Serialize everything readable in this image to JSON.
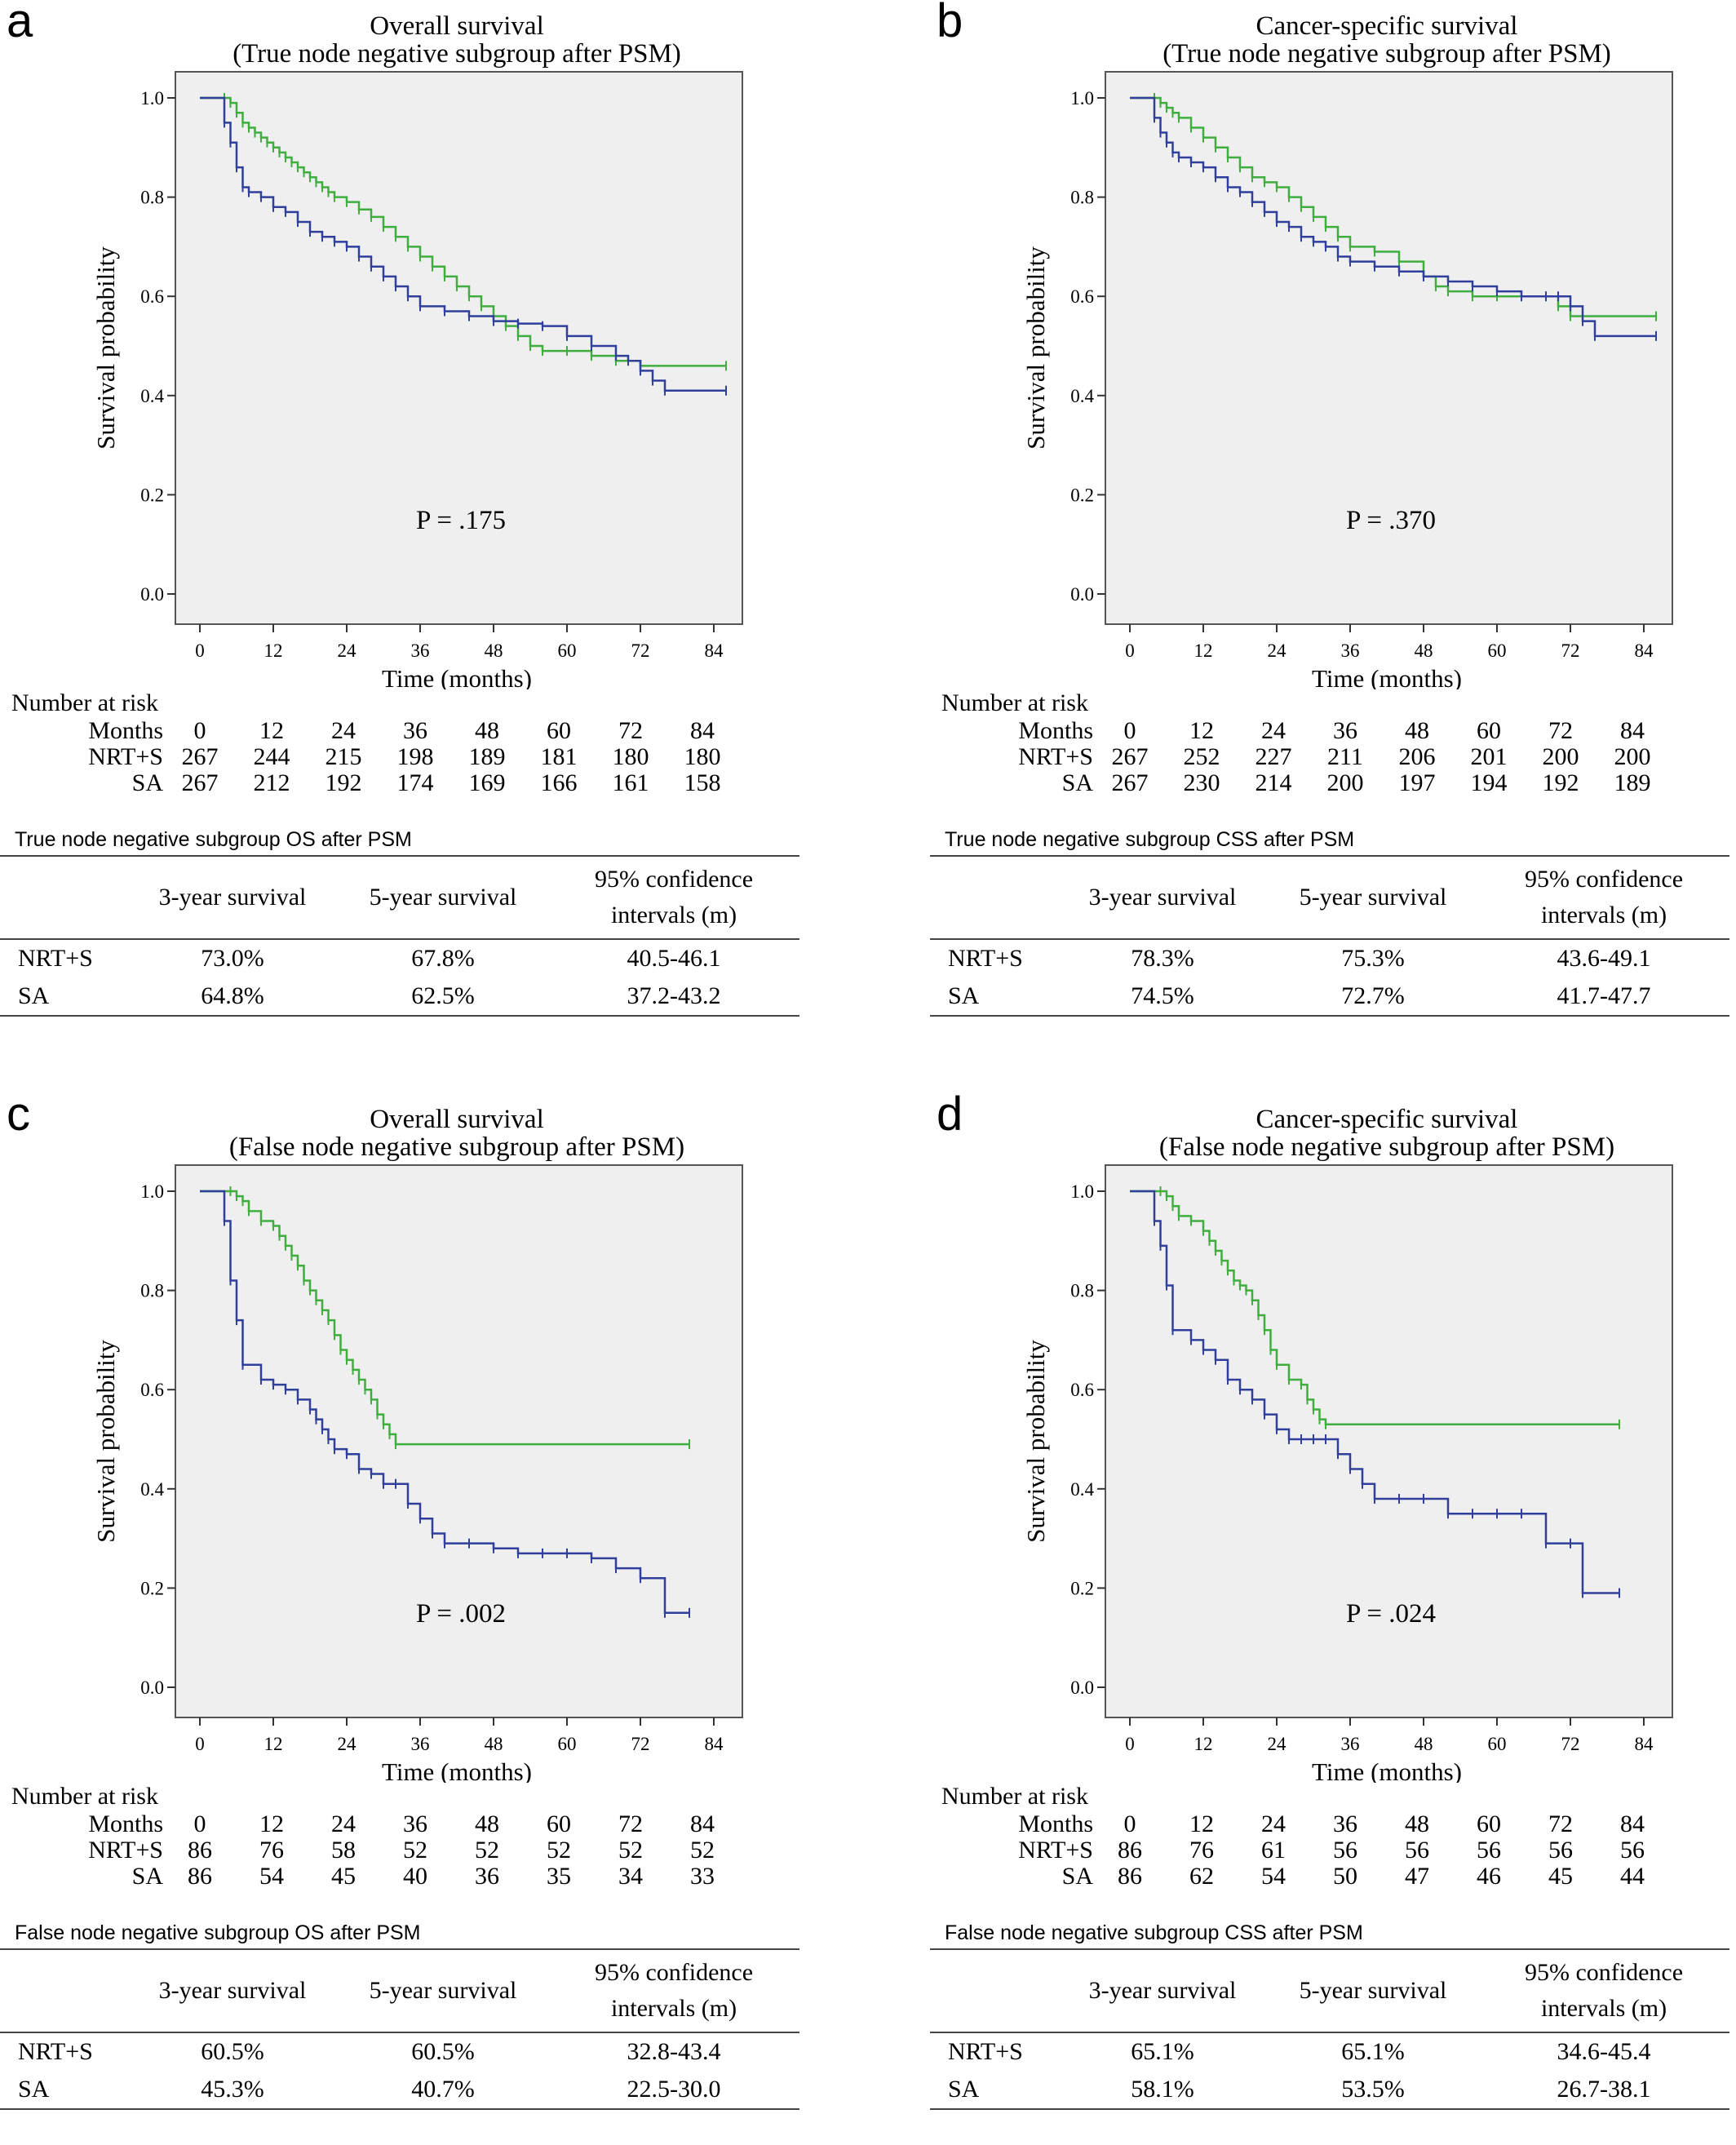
{
  "colors": {
    "nrt": "#3fae3f",
    "sa": "#2f3f9b",
    "plot_bg": "#efefef"
  },
  "chart_data": [
    {
      "type": "line",
      "letter": "a",
      "title": "Overall survival",
      "subtitle": "(True node negative subgroup after PSM)",
      "xlabel": "Time (months)",
      "ylabel": "Survival probability",
      "xlim": [
        0,
        84
      ],
      "ylim": [
        0.0,
        1.0
      ],
      "xticks": [
        "0",
        "12",
        "24",
        "36",
        "48",
        "60",
        "72",
        "84"
      ],
      "yticks": [
        "0.0",
        "0.2",
        "0.4",
        "0.6",
        "0.8",
        "1.0"
      ],
      "grid": false,
      "pvalue": "P = .175",
      "series": [
        {
          "key": "nrt",
          "x": [
            0,
            4,
            5,
            6,
            7,
            8,
            9,
            10,
            11,
            12,
            13,
            14,
            15,
            16,
            17,
            18,
            19,
            20,
            21,
            22,
            24,
            26,
            28,
            30,
            32,
            34,
            36,
            38,
            40,
            42,
            44,
            46,
            48,
            50,
            52,
            54,
            56,
            60,
            64,
            68,
            72,
            86
          ],
          "y": [
            1,
            1,
            0.99,
            0.97,
            0.95,
            0.94,
            0.93,
            0.92,
            0.91,
            0.9,
            0.89,
            0.88,
            0.87,
            0.86,
            0.85,
            0.84,
            0.83,
            0.82,
            0.81,
            0.8,
            0.79,
            0.775,
            0.76,
            0.74,
            0.72,
            0.7,
            0.68,
            0.66,
            0.64,
            0.62,
            0.6,
            0.58,
            0.56,
            0.54,
            0.52,
            0.5,
            0.49,
            0.49,
            0.48,
            0.47,
            0.46,
            0.46
          ]
        },
        {
          "key": "sa",
          "x": [
            0,
            4,
            5,
            6,
            7,
            8,
            10,
            12,
            14,
            16,
            18,
            20,
            22,
            24,
            26,
            28,
            30,
            32,
            34,
            36,
            40,
            44,
            48,
            52,
            56,
            60,
            64,
            68,
            70,
            72,
            74,
            76,
            86
          ],
          "y": [
            1,
            0.95,
            0.91,
            0.86,
            0.82,
            0.81,
            0.8,
            0.78,
            0.77,
            0.75,
            0.73,
            0.72,
            0.71,
            0.7,
            0.68,
            0.66,
            0.64,
            0.62,
            0.6,
            0.58,
            0.57,
            0.56,
            0.55,
            0.545,
            0.54,
            0.52,
            0.5,
            0.48,
            0.47,
            0.45,
            0.43,
            0.41,
            0.41
          ]
        }
      ],
      "risk": {
        "title": "Number at risk",
        "rows": [
          {
            "label": "Months",
            "values": [
              "0",
              "12",
              "24",
              "36",
              "48",
              "60",
              "72",
              "84"
            ]
          },
          {
            "label": "NRT+S",
            "values": [
              "267",
              "244",
              "215",
              "198",
              "189",
              "181",
              "180",
              "180"
            ]
          },
          {
            "label": "SA",
            "values": [
              "267",
              "212",
              "192",
              "174",
              "169",
              "166",
              "161",
              "158"
            ]
          }
        ]
      },
      "table": {
        "title": "True node negative subgroup OS after PSM",
        "headers": [
          "",
          "3-year survival",
          "5-year survival",
          "95% confidence intervals (m)"
        ],
        "rows": [
          [
            "NRT+S",
            "73.0%",
            "67.8%",
            "40.5-46.1"
          ],
          [
            "SA",
            "64.8%",
            "62.5%",
            "37.2-43.2"
          ]
        ]
      }
    },
    {
      "type": "line",
      "letter": "b",
      "title": "Cancer-specific survival",
      "subtitle": "(True node negative subgroup after PSM)",
      "xlabel": "Time (months)",
      "ylabel": "Survival probability",
      "xlim": [
        0,
        84
      ],
      "ylim": [
        0.0,
        1.0
      ],
      "xticks": [
        "0",
        "12",
        "24",
        "36",
        "48",
        "60",
        "72",
        "84"
      ],
      "yticks": [
        "0.0",
        "0.2",
        "0.4",
        "0.6",
        "0.8",
        "1.0"
      ],
      "grid": false,
      "pvalue": "P = .370",
      "series": [
        {
          "key": "nrt",
          "x": [
            0,
            4,
            5,
            6,
            7,
            8,
            10,
            12,
            14,
            16,
            18,
            20,
            22,
            24,
            26,
            28,
            30,
            32,
            34,
            36,
            40,
            44,
            48,
            50,
            52,
            56,
            60,
            64,
            68,
            70,
            72,
            86
          ],
          "y": [
            1,
            1,
            0.99,
            0.98,
            0.97,
            0.96,
            0.94,
            0.92,
            0.9,
            0.88,
            0.86,
            0.84,
            0.83,
            0.82,
            0.8,
            0.78,
            0.76,
            0.74,
            0.72,
            0.7,
            0.69,
            0.67,
            0.64,
            0.62,
            0.61,
            0.6,
            0.6,
            0.6,
            0.6,
            0.58,
            0.56,
            0.56
          ]
        },
        {
          "key": "sa",
          "x": [
            0,
            4,
            5,
            6,
            7,
            8,
            10,
            12,
            14,
            16,
            18,
            20,
            22,
            24,
            26,
            28,
            30,
            32,
            34,
            36,
            40,
            44,
            48,
            52,
            56,
            60,
            64,
            68,
            70,
            72,
            74,
            76,
            86
          ],
          "y": [
            1,
            0.96,
            0.93,
            0.91,
            0.89,
            0.88,
            0.87,
            0.86,
            0.84,
            0.82,
            0.81,
            0.79,
            0.77,
            0.75,
            0.74,
            0.72,
            0.71,
            0.7,
            0.68,
            0.67,
            0.66,
            0.65,
            0.64,
            0.63,
            0.62,
            0.61,
            0.6,
            0.6,
            0.6,
            0.58,
            0.55,
            0.52,
            0.52
          ]
        }
      ],
      "risk": {
        "title": "Number at risk",
        "rows": [
          {
            "label": "Months",
            "values": [
              "0",
              "12",
              "24",
              "36",
              "48",
              "60",
              "72",
              "84"
            ]
          },
          {
            "label": "NRT+S",
            "values": [
              "267",
              "252",
              "227",
              "211",
              "206",
              "201",
              "200",
              "200"
            ]
          },
          {
            "label": "SA",
            "values": [
              "267",
              "230",
              "214",
              "200",
              "197",
              "194",
              "192",
              "189"
            ]
          }
        ]
      },
      "table": {
        "title": "True node negative subgroup CSS after PSM",
        "headers": [
          "",
          "3-year survival",
          "5-year survival",
          "95% confidence intervals (m)"
        ],
        "rows": [
          [
            "NRT+S",
            "78.3%",
            "75.3%",
            "43.6-49.1"
          ],
          [
            "SA",
            "74.5%",
            "72.7%",
            "41.7-47.7"
          ]
        ]
      }
    },
    {
      "type": "line",
      "letter": "c",
      "title": "Overall survival",
      "subtitle": "(False node negative subgroup after PSM)",
      "xlabel": "Time (months)",
      "ylabel": "Survival probability",
      "xlim": [
        0,
        84
      ],
      "ylim": [
        0.0,
        1.0
      ],
      "xticks": [
        "0",
        "12",
        "24",
        "36",
        "48",
        "60",
        "72",
        "84"
      ],
      "yticks": [
        "0.0",
        "0.2",
        "0.4",
        "0.6",
        "0.8",
        "1.0"
      ],
      "grid": false,
      "pvalue": "P = .002",
      "series": [
        {
          "key": "nrt",
          "x": [
            0,
            5,
            6,
            7,
            8,
            10,
            12,
            13,
            14,
            15,
            16,
            17,
            18,
            19,
            20,
            21,
            22,
            23,
            24,
            25,
            26,
            27,
            28,
            29,
            30,
            31,
            32,
            80
          ],
          "y": [
            1,
            1,
            0.99,
            0.98,
            0.96,
            0.94,
            0.93,
            0.91,
            0.89,
            0.87,
            0.85,
            0.82,
            0.8,
            0.78,
            0.76,
            0.74,
            0.71,
            0.68,
            0.66,
            0.64,
            0.62,
            0.6,
            0.58,
            0.55,
            0.53,
            0.51,
            0.49,
            0.49
          ]
        },
        {
          "key": "sa",
          "x": [
            0,
            4,
            5,
            6,
            7,
            10,
            12,
            14,
            16,
            18,
            19,
            20,
            21,
            22,
            24,
            26,
            28,
            30,
            32,
            34,
            36,
            38,
            40,
            44,
            48,
            52,
            56,
            60,
            64,
            68,
            72,
            76,
            80
          ],
          "y": [
            1,
            0.94,
            0.82,
            0.74,
            0.65,
            0.62,
            0.61,
            0.6,
            0.58,
            0.56,
            0.54,
            0.52,
            0.5,
            0.48,
            0.47,
            0.44,
            0.43,
            0.41,
            0.41,
            0.37,
            0.34,
            0.31,
            0.29,
            0.29,
            0.28,
            0.27,
            0.27,
            0.27,
            0.26,
            0.24,
            0.22,
            0.15,
            0.15
          ]
        }
      ],
      "risk": {
        "title": "Number at risk",
        "rows": [
          {
            "label": "Months",
            "values": [
              "0",
              "12",
              "24",
              "36",
              "48",
              "60",
              "72",
              "84"
            ]
          },
          {
            "label": "NRT+S",
            "values": [
              "86",
              "76",
              "58",
              "52",
              "52",
              "52",
              "52",
              "52"
            ]
          },
          {
            "label": "SA",
            "values": [
              "86",
              "54",
              "45",
              "40",
              "36",
              "35",
              "34",
              "33"
            ]
          }
        ]
      },
      "table": {
        "title": "False node negative subgroup OS after PSM",
        "headers": [
          "",
          "3-year survival",
          "5-year survival",
          "95% confidence intervals (m)"
        ],
        "rows": [
          [
            "NRT+S",
            "60.5%",
            "60.5%",
            "32.8-43.4"
          ],
          [
            "SA",
            "45.3%",
            "40.7%",
            "22.5-30.0"
          ]
        ]
      }
    },
    {
      "type": "line",
      "letter": "d",
      "title": "Cancer-specific survival",
      "subtitle": "(False node negative subgroup after PSM)",
      "xlabel": "Time (months)",
      "ylabel": "Survival probability",
      "xlim": [
        0,
        84
      ],
      "ylim": [
        0.0,
        1.0
      ],
      "xticks": [
        "0",
        "12",
        "24",
        "36",
        "48",
        "60",
        "72",
        "84"
      ],
      "yticks": [
        "0.0",
        "0.2",
        "0.4",
        "0.6",
        "0.8",
        "1.0"
      ],
      "grid": false,
      "pvalue": "P = .024",
      "series": [
        {
          "key": "nrt",
          "x": [
            0,
            5,
            6,
            7,
            8,
            10,
            12,
            13,
            14,
            15,
            16,
            17,
            18,
            19,
            20,
            21,
            22,
            23,
            24,
            26,
            28,
            29,
            30,
            31,
            32,
            80
          ],
          "y": [
            1,
            1,
            0.99,
            0.97,
            0.95,
            0.94,
            0.92,
            0.9,
            0.88,
            0.86,
            0.84,
            0.82,
            0.81,
            0.8,
            0.78,
            0.75,
            0.72,
            0.68,
            0.65,
            0.62,
            0.61,
            0.58,
            0.56,
            0.54,
            0.53,
            0.53
          ]
        },
        {
          "key": "sa",
          "x": [
            0,
            4,
            5,
            6,
            7,
            10,
            12,
            14,
            16,
            18,
            20,
            22,
            24,
            26,
            28,
            30,
            32,
            34,
            36,
            38,
            40,
            44,
            48,
            52,
            56,
            60,
            64,
            68,
            72,
            74,
            80
          ],
          "y": [
            1,
            0.94,
            0.89,
            0.81,
            0.72,
            0.7,
            0.68,
            0.66,
            0.62,
            0.6,
            0.58,
            0.55,
            0.52,
            0.5,
            0.5,
            0.5,
            0.5,
            0.47,
            0.44,
            0.41,
            0.38,
            0.38,
            0.38,
            0.35,
            0.35,
            0.35,
            0.35,
            0.29,
            0.29,
            0.19,
            0.19
          ]
        }
      ],
      "risk": {
        "title": "Number at risk",
        "rows": [
          {
            "label": "Months",
            "values": [
              "0",
              "12",
              "24",
              "36",
              "48",
              "60",
              "72",
              "84"
            ]
          },
          {
            "label": "NRT+S",
            "values": [
              "86",
              "76",
              "61",
              "56",
              "56",
              "56",
              "56",
              "56"
            ]
          },
          {
            "label": "SA",
            "values": [
              "86",
              "62",
              "54",
              "50",
              "47",
              "46",
              "45",
              "44"
            ]
          }
        ]
      },
      "table": {
        "title": "False node negative subgroup CSS after PSM",
        "headers": [
          "",
          "3-year survival",
          "5-year survival",
          "95% confidence intervals (m)"
        ],
        "rows": [
          [
            "NRT+S",
            "65.1%",
            "65.1%",
            "34.6-45.4"
          ],
          [
            "SA",
            "58.1%",
            "53.5%",
            "26.7-38.1"
          ]
        ]
      }
    }
  ]
}
